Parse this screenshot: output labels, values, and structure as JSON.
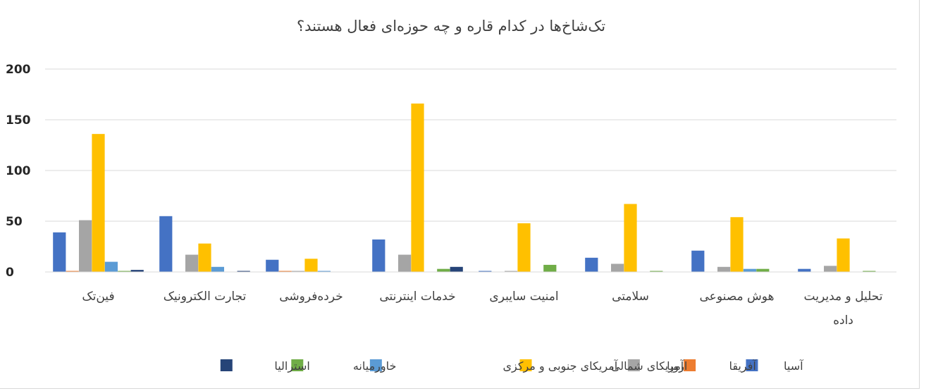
{
  "chart_data": {
    "type": "bar",
    "title": "تک‌شاخ‌ها در کدام قاره و چه حوزه‌ای فعال هستند؟",
    "categories": [
      [
        "فین‌تک"
      ],
      [
        "تجارت الکترونیک"
      ],
      [
        "خرده‌فروشی"
      ],
      [
        "خدمات اینترنتی"
      ],
      [
        "امنیت سایبری"
      ],
      [
        "سلامتی"
      ],
      [
        "هوش مصنوعی"
      ],
      [
        "تحلیل و مدیریت",
        "داده"
      ]
    ],
    "series": [
      {
        "name": "آسیا",
        "color": "#4472C4",
        "values": [
          39,
          55,
          12,
          32,
          1,
          14,
          21,
          3
        ]
      },
      {
        "name": "آفریقا",
        "color": "#ED7D31",
        "values": [
          1,
          0,
          1,
          0,
          0,
          0,
          0,
          0
        ]
      },
      {
        "name": "اروپا",
        "color": "#A5A5A5",
        "values": [
          51,
          17,
          1,
          17,
          1,
          8,
          5,
          6
        ]
      },
      {
        "name": "آمریکای شمالی",
        "color": "#FFC000",
        "values": [
          136,
          28,
          13,
          166,
          48,
          67,
          54,
          33
        ]
      },
      {
        "name": "آمریکای جنوبی و مرکزی",
        "color": "#5B9BD5",
        "values": [
          10,
          5,
          1,
          0,
          0,
          0,
          3,
          0
        ]
      },
      {
        "name": "خاورمیانه",
        "color": "#70AD47",
        "values": [
          1,
          0,
          0,
          3,
          7,
          1,
          3,
          1
        ]
      },
      {
        "name": "استرالیا",
        "color": "#264478",
        "values": [
          2,
          1,
          0,
          5,
          0,
          0,
          0,
          0
        ]
      }
    ],
    "yticks": [
      "0",
      "50",
      "100",
      "150",
      "200"
    ],
    "ylim": [
      0,
      200
    ],
    "grid": true,
    "legend_position": "bottom"
  }
}
